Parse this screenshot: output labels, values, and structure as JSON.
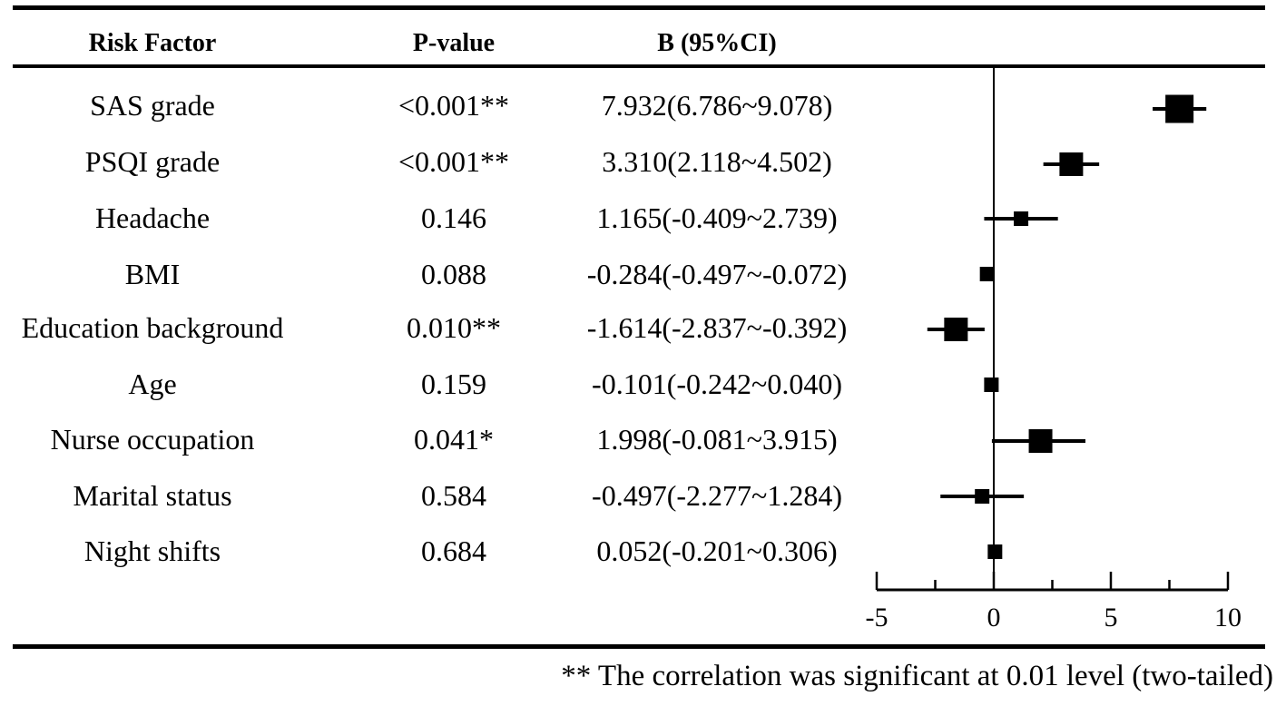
{
  "table": {
    "headers": {
      "risk": "Risk Factor",
      "p": "P-value",
      "b": "B (95%CI)"
    },
    "rows": [
      {
        "factor": "SAS grade",
        "p": "<0.001**",
        "b_ci": "7.932(6.786~9.078)"
      },
      {
        "factor": "PSQI grade",
        "p": "<0.001**",
        "b_ci": "3.310(2.118~4.502)"
      },
      {
        "factor": "Headache",
        "p": "0.146",
        "b_ci": "1.165(-0.409~2.739)"
      },
      {
        "factor": "BMI",
        "p": "0.088",
        "b_ci": "-0.284(-0.497~-0.072)"
      },
      {
        "factor": "Education background",
        "p": "0.010**",
        "b_ci": "-1.614(-2.837~-0.392)"
      },
      {
        "factor": "Age",
        "p": "0.159",
        "b_ci": "-0.101(-0.242~0.040)"
      },
      {
        "factor": "Nurse occupation",
        "p": "0.041*",
        "b_ci": "1.998(-0.081~3.915)"
      },
      {
        "factor": "Marital status",
        "p": "0.584",
        "b_ci": "-0.497(-2.277~1.284)"
      },
      {
        "factor": "Night shifts",
        "p": "0.684",
        "b_ci": "0.052(-0.201~0.306)"
      }
    ]
  },
  "footnote": "** The correlation was significant at 0.01 level (two-tailed)",
  "chart_data": {
    "type": "scatter",
    "xlim": [
      -5,
      10
    ],
    "xticks": [
      -5,
      0,
      5,
      10
    ],
    "xtick_labels": [
      "-5",
      "0",
      "5",
      "10"
    ],
    "reference_line": 0,
    "grid": false,
    "marker": "square",
    "marker_color": "#000000",
    "points": [
      {
        "label": "SAS grade",
        "b": 7.932,
        "lower": 6.786,
        "upper": 9.078,
        "marker_size": 5
      },
      {
        "label": "PSQI grade",
        "b": 3.31,
        "lower": 2.118,
        "upper": 4.502,
        "marker_size": 4
      },
      {
        "label": "Headache",
        "b": 1.165,
        "lower": -0.409,
        "upper": 2.739,
        "marker_size": 2
      },
      {
        "label": "BMI",
        "b": -0.284,
        "lower": -0.497,
        "upper": -0.072,
        "marker_size": 2
      },
      {
        "label": "Education background",
        "b": -1.614,
        "lower": -2.837,
        "upper": -0.392,
        "marker_size": 4
      },
      {
        "label": "Age",
        "b": -0.101,
        "lower": -0.242,
        "upper": 0.04,
        "marker_size": 2
      },
      {
        "label": "Nurse occupation",
        "b": 1.998,
        "lower": -0.081,
        "upper": 3.915,
        "marker_size": 4
      },
      {
        "label": "Marital status",
        "b": -0.497,
        "lower": -2.277,
        "upper": 1.284,
        "marker_size": 2
      },
      {
        "label": "Night shifts",
        "b": 0.052,
        "lower": -0.201,
        "upper": 0.306,
        "marker_size": 2
      }
    ]
  }
}
